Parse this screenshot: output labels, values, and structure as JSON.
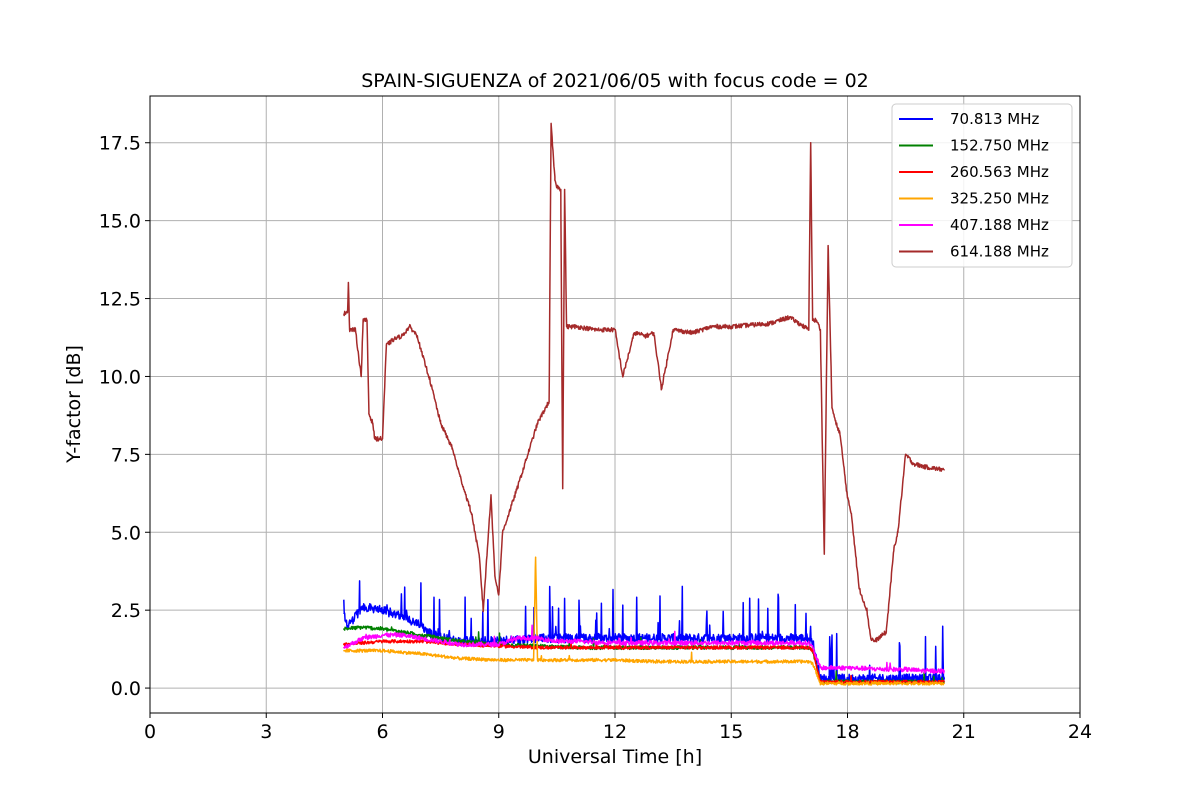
{
  "chart_data": {
    "type": "line",
    "title": "SPAIN-SIGUENZA of 2021/06/05 with focus code = 02",
    "xlabel": "Universal Time [h]",
    "ylabel": "Y-factor [dB]",
    "xlim": [
      0,
      24
    ],
    "ylim": [
      -0.8,
      19.0
    ],
    "xticks": [
      0,
      3,
      6,
      9,
      12,
      15,
      18,
      21,
      24
    ],
    "xtick_labels": [
      "0",
      "3",
      "6",
      "9",
      "12",
      "15",
      "18",
      "21",
      "24"
    ],
    "yticks": [
      0.0,
      2.5,
      5.0,
      7.5,
      10.0,
      12.5,
      15.0,
      17.5
    ],
    "ytick_labels": [
      "0.0",
      "2.5",
      "5.0",
      "7.5",
      "10.0",
      "12.5",
      "15.0",
      "17.5"
    ],
    "grid": true,
    "legend_position": "top-right",
    "series": [
      {
        "name": " 70.813 MHz",
        "color": "#0000ff",
        "noise": 0.15,
        "spike_rate": 0.05,
        "spike_max": 1.6,
        "x": [
          5.0,
          5.1,
          5.5,
          6.0,
          6.5,
          7.0,
          7.3,
          8.0,
          9.0,
          10.0,
          11.0,
          12.0,
          13.0,
          14.0,
          15.0,
          16.0,
          17.0,
          17.1,
          17.3,
          18.0,
          19.0,
          20.0,
          20.5
        ],
        "y": [
          2.4,
          2.0,
          2.6,
          2.5,
          2.3,
          2.0,
          1.7,
          1.5,
          1.5,
          1.6,
          1.6,
          1.6,
          1.6,
          1.6,
          1.6,
          1.6,
          1.6,
          1.5,
          0.3,
          0.3,
          0.3,
          0.3,
          0.3
        ]
      },
      {
        "name": "152.750 MHz",
        "color": "#008000",
        "noise": 0.06,
        "spike_rate": 0.01,
        "spike_max": 0.4,
        "x": [
          5.0,
          5.5,
          6.0,
          6.5,
          7.0,
          8.0,
          9.0,
          10.0,
          11.0,
          12.0,
          13.0,
          14.0,
          15.0,
          16.0,
          17.0,
          17.1,
          17.3,
          18.0,
          19.0,
          20.0,
          20.5
        ],
        "y": [
          1.9,
          1.95,
          1.9,
          1.8,
          1.7,
          1.5,
          1.4,
          1.35,
          1.3,
          1.3,
          1.3,
          1.3,
          1.3,
          1.3,
          1.3,
          1.2,
          0.2,
          0.2,
          0.2,
          0.2,
          0.2
        ]
      },
      {
        "name": "260.563 MHz",
        "color": "#ff0000",
        "noise": 0.05,
        "spike_rate": 0.005,
        "spike_max": 0.3,
        "x": [
          5.0,
          6.0,
          7.0,
          8.0,
          9.0,
          10.0,
          11.0,
          12.0,
          13.0,
          14.0,
          15.0,
          16.0,
          17.0,
          17.1,
          17.3,
          18.0,
          19.0,
          20.0,
          20.5
        ],
        "y": [
          1.4,
          1.5,
          1.5,
          1.4,
          1.35,
          1.3,
          1.3,
          1.3,
          1.3,
          1.3,
          1.3,
          1.3,
          1.3,
          1.2,
          0.2,
          0.2,
          0.2,
          0.2,
          0.2
        ]
      },
      {
        "name": "325.250 MHz",
        "color": "#ffa500",
        "noise": 0.05,
        "spike_rate": 0.005,
        "spike_max": 0.3,
        "x": [
          5.0,
          6.0,
          7.0,
          8.0,
          9.0,
          9.9,
          9.95,
          10.0,
          10.5,
          11.0,
          12.0,
          13.0,
          14.0,
          15.0,
          16.0,
          17.0,
          17.1,
          17.3,
          18.0,
          19.0,
          20.0,
          20.5
        ],
        "y": [
          1.2,
          1.2,
          1.1,
          0.95,
          0.9,
          0.9,
          4.2,
          0.9,
          0.9,
          0.9,
          0.9,
          0.85,
          0.85,
          0.85,
          0.85,
          0.85,
          0.8,
          0.15,
          0.15,
          0.15,
          0.15,
          0.15
        ]
      },
      {
        "name": "407.188 MHz",
        "color": "#ff00ff",
        "noise": 0.07,
        "spike_rate": 0.01,
        "spike_max": 0.4,
        "x": [
          5.0,
          5.5,
          6.0,
          6.5,
          7.0,
          7.5,
          8.0,
          9.0,
          9.5,
          10.0,
          10.5,
          11.0,
          12.0,
          13.0,
          14.0,
          15.0,
          16.0,
          17.0,
          17.1,
          17.3,
          18.0,
          19.0,
          19.5,
          20.0,
          20.5
        ],
        "y": [
          1.3,
          1.6,
          1.7,
          1.7,
          1.6,
          1.5,
          1.4,
          1.4,
          1.6,
          1.6,
          1.5,
          1.5,
          1.45,
          1.45,
          1.45,
          1.45,
          1.45,
          1.45,
          1.3,
          0.65,
          0.65,
          0.6,
          0.6,
          0.55,
          0.55
        ]
      },
      {
        "name": "614.188 MHz",
        "color": "#a52a2a",
        "noise": 0.07,
        "spike_rate": 0.0,
        "spike_max": 0.0,
        "x": [
          5.0,
          5.1,
          5.12,
          5.15,
          5.3,
          5.45,
          5.5,
          5.6,
          5.65,
          5.75,
          5.8,
          6.0,
          6.1,
          6.3,
          6.5,
          6.7,
          6.9,
          7.0,
          7.2,
          7.5,
          7.8,
          8.0,
          8.3,
          8.5,
          8.6,
          8.8,
          8.9,
          9.0,
          9.1,
          9.5,
          10.0,
          10.3,
          10.35,
          10.45,
          10.5,
          10.6,
          10.65,
          10.7,
          10.75,
          11.0,
          11.5,
          11.8,
          12.0,
          12.2,
          12.5,
          12.8,
          13.0,
          13.2,
          13.5,
          14.0,
          14.5,
          15.0,
          16.0,
          16.5,
          17.0,
          17.05,
          17.1,
          17.2,
          17.3,
          17.4,
          17.5,
          17.6,
          17.7,
          17.8,
          18.0,
          18.1,
          18.3,
          18.5,
          18.6,
          18.7,
          19.0,
          19.2,
          19.3,
          19.5,
          19.7,
          20.0,
          20.5
        ],
        "y": [
          12.0,
          12.1,
          13.0,
          11.5,
          11.5,
          10.0,
          11.8,
          11.8,
          8.8,
          8.5,
          8.0,
          8.0,
          11.0,
          11.2,
          11.3,
          11.6,
          11.3,
          10.8,
          10.0,
          8.5,
          7.7,
          6.8,
          5.6,
          4.2,
          2.5,
          6.2,
          3.6,
          3.0,
          5.0,
          6.5,
          8.5,
          9.2,
          18.1,
          16.3,
          16.1,
          16.0,
          6.4,
          16.0,
          11.6,
          11.6,
          11.5,
          11.5,
          11.5,
          10.0,
          11.4,
          11.3,
          11.4,
          9.6,
          11.5,
          11.4,
          11.6,
          11.6,
          11.7,
          11.9,
          11.5,
          17.5,
          11.8,
          11.8,
          11.5,
          4.3,
          14.2,
          9.0,
          8.5,
          8.2,
          6.1,
          5.6,
          3.2,
          2.5,
          1.6,
          1.5,
          1.8,
          4.5,
          5.0,
          7.5,
          7.2,
          7.1,
          7.0
        ]
      }
    ]
  }
}
